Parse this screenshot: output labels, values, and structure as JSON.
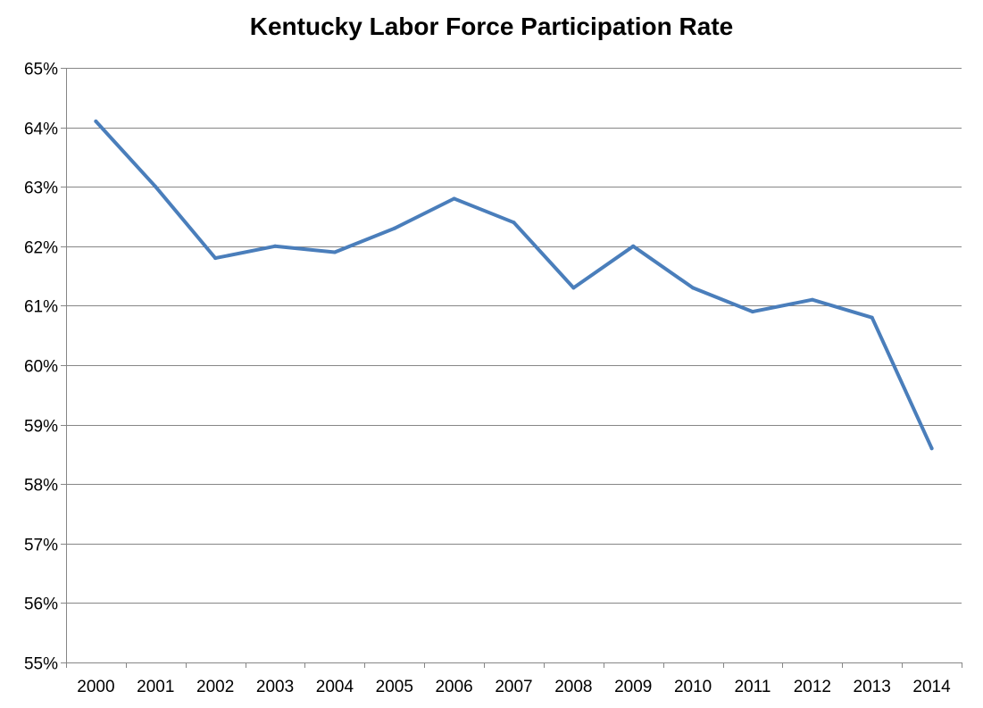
{
  "chart_data": {
    "type": "line",
    "title": "Kentucky Labor Force Participation Rate",
    "xlabel": "",
    "ylabel": "",
    "categories": [
      "2000",
      "2001",
      "2002",
      "2003",
      "2004",
      "2005",
      "2006",
      "2007",
      "2008",
      "2009",
      "2010",
      "2011",
      "2012",
      "2013",
      "2014"
    ],
    "series": [
      {
        "values": [
          64.1,
          63.0,
          61.8,
          62.0,
          61.9,
          62.3,
          62.8,
          62.4,
          61.3,
          62.0,
          61.3,
          60.9,
          61.1,
          60.8,
          58.6
        ],
        "color": "#4a7ebb"
      }
    ],
    "ylim": [
      55,
      65
    ],
    "yticks": [
      "55%",
      "56%",
      "57%",
      "58%",
      "59%",
      "60%",
      "61%",
      "62%",
      "63%",
      "64%",
      "65%"
    ],
    "grid": true,
    "gridline_color": "#868686",
    "legend": "none"
  }
}
